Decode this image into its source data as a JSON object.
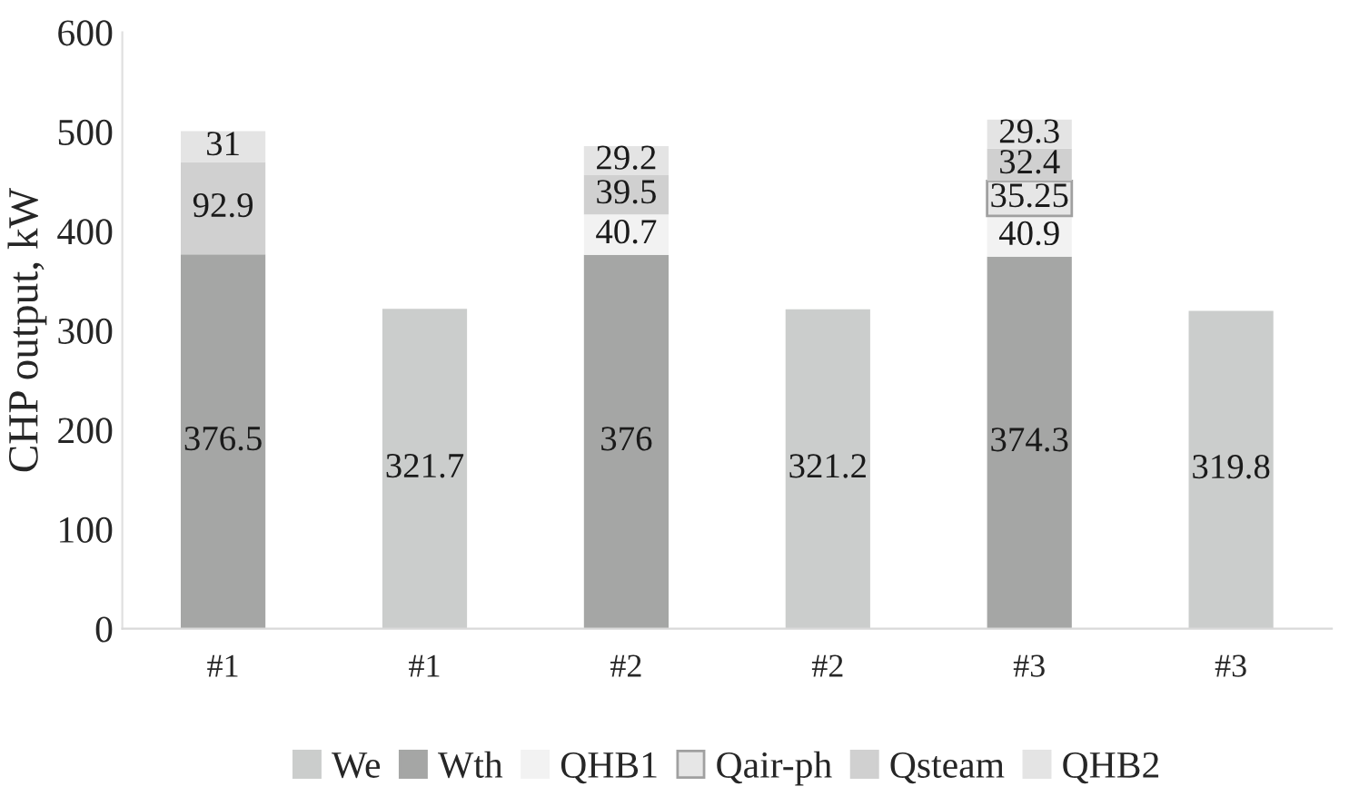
{
  "chart_data": {
    "type": "bar",
    "stacked": true,
    "ylabel": "CHP output, kW",
    "categories": [
      "#1",
      "#1",
      "#2",
      "#2",
      "#3",
      "#3"
    ],
    "series": [
      {
        "name": "We",
        "color": "#cbcdcc",
        "values": [
          null,
          321.7,
          null,
          321.2,
          null,
          319.8
        ]
      },
      {
        "name": "Wth",
        "color": "#a5a6a5",
        "values": [
          376.5,
          null,
          376,
          null,
          374.3,
          null
        ]
      },
      {
        "name": "QHB1",
        "color": "#f2f2f2",
        "values": [
          null,
          null,
          40.7,
          null,
          40.9,
          null
        ]
      },
      {
        "name": "Qair-ph",
        "color": "#e6e6e6",
        "values": [
          null,
          null,
          null,
          null,
          35.25,
          null
        ]
      },
      {
        "name": "Qsteam",
        "color": "#d0d0d0",
        "values": [
          92.9,
          null,
          39.5,
          null,
          32.4,
          null
        ]
      },
      {
        "name": "QHB2",
        "color": "#e4e4e4",
        "values": [
          31,
          null,
          29.2,
          null,
          29.3,
          null
        ]
      }
    ],
    "ylim": [
      0,
      600
    ],
    "yticks": [
      0,
      100,
      200,
      300,
      400,
      500,
      600
    ],
    "data_labels": true,
    "legend": "bottom",
    "grid": false
  }
}
